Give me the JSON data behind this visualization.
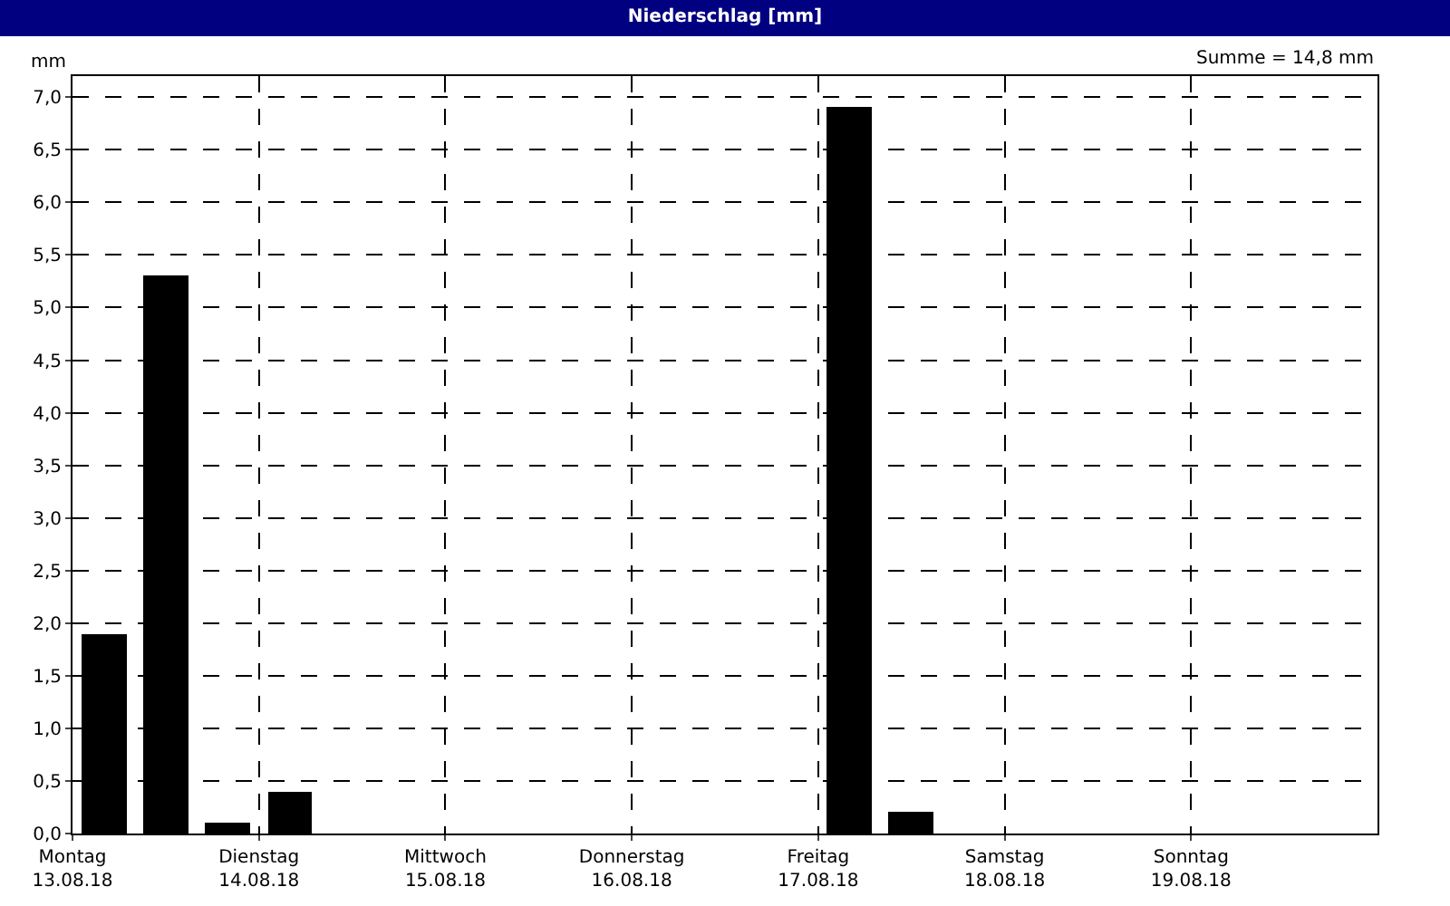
{
  "chart_data": {
    "type": "bar",
    "title": "Niederschlag [mm]",
    "ylabel": "mm",
    "annotations": [
      "Summe = 14,8 mm"
    ],
    "x": [
      "--08-13T04:00",
      "--08-13T12:00",
      "--08-13T20:00",
      "--08-14T04:00",
      "--08-17T04:00",
      "--08-17T12:00"
    ],
    "values": [
      1.9,
      5.3,
      0.1,
      0.4,
      6.9,
      0.2
    ],
    "color": "#000000",
    "xlim": [
      "--08-13T00:00",
      "--08-20T00:00"
    ],
    "xticks": [
      {
        "value": "--08-13T00:00",
        "label": "Montag\n13.08.18"
      },
      {
        "value": "--08-14T00:00",
        "label": "Dienstag\n14.08.18"
      },
      {
        "value": "--08-15T00:00",
        "label": "Mittwoch\n15.08.18"
      },
      {
        "value": "--08-16T00:00",
        "label": "Donnerstag\n16.08.18"
      },
      {
        "value": "--08-17T00:00",
        "label": "Freitag\n17.08.18"
      },
      {
        "value": "--08-18T00:00",
        "label": "Samstag\n18.08.18"
      },
      {
        "value": "--08-19T00:00",
        "label": "Sonntag\n19.08.18"
      }
    ],
    "ylim": [
      0,
      7.2
    ],
    "yticks": [
      {
        "value": 0,
        "label": "0,0"
      },
      {
        "value": 0.5,
        "label": "0,5"
      },
      {
        "value": 1,
        "label": "1,0"
      },
      {
        "value": 1.5,
        "label": "1,5"
      },
      {
        "value": 2,
        "label": "2,0"
      },
      {
        "value": 2.5,
        "label": "2,5"
      },
      {
        "value": 3,
        "label": "3,0"
      },
      {
        "value": 3.5,
        "label": "3,5"
      },
      {
        "value": 4,
        "label": "4,0"
      },
      {
        "value": 4.5,
        "label": "4,5"
      },
      {
        "value": 5,
        "label": "5,0"
      },
      {
        "value": 5.5,
        "label": "5,5"
      },
      {
        "value": 6,
        "label": "6,0"
      },
      {
        "value": 6.5,
        "label": "6,5"
      },
      {
        "value": 7,
        "label": "7,0"
      }
    ],
    "grid": true
  }
}
